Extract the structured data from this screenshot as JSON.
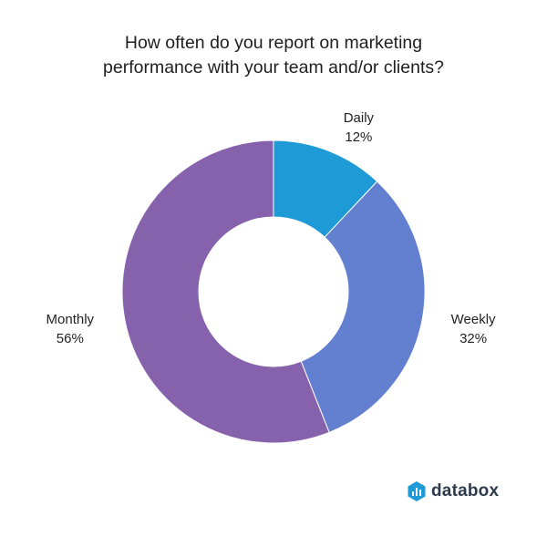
{
  "chart_data": {
    "type": "pie",
    "title_lines": [
      "How often do you report on marketing",
      "performance with your team and/or clients?"
    ],
    "slices": [
      {
        "name": "Daily",
        "value": 12,
        "label": "12%",
        "color": "#1e9bd7"
      },
      {
        "name": "Weekly",
        "value": 32,
        "label": "32%",
        "color": "#637fcf"
      },
      {
        "name": "Monthly",
        "value": 56,
        "label": "56%",
        "color": "#8662ad"
      }
    ],
    "legend": "none"
  },
  "brand": {
    "name": "databox",
    "logo_icon": "databox-logo-icon",
    "logo_color": "#1e9bd7"
  }
}
